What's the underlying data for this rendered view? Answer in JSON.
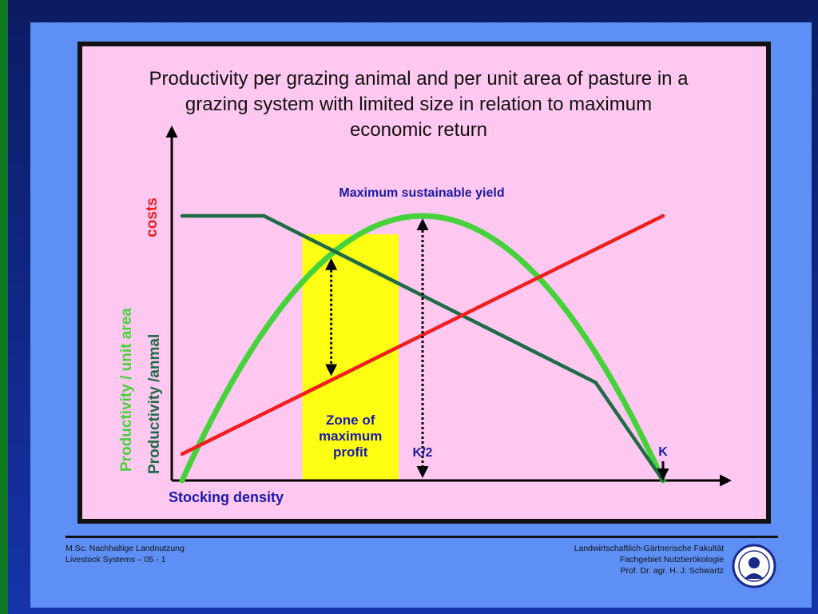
{
  "colors": {
    "background": "#1533a8",
    "left_accent": "#0f7a22",
    "panel": "#5e8ff5",
    "chart_bg": "#ffc8f0",
    "profit_zone": "#ffff14",
    "productivity_area": "#46d23c",
    "productivity_animal": "#1f6b45",
    "costs": "#f01e1e",
    "label_blue": "#1a1aa8"
  },
  "footer": {
    "left": [
      "M.Sc. Nachhaltige Landnutzung",
      "Livestock Systems – 05 - 1"
    ],
    "right": [
      "Landwirtschaftlich-Gärtnerische Fakultät",
      "Fachgebiet Nutztierökologie",
      "Prof. Dr. agr. H. J. Schwartz"
    ]
  },
  "logo_icon": "university-seal-icon",
  "chart_data": {
    "type": "line",
    "title": [
      "Productivity per grazing animal and per unit area of pasture in a",
      "grazing system with limited size in relation to maximum",
      "economic return"
    ],
    "xlabel": "Stocking density",
    "ylabels": [
      {
        "text": "costs",
        "color": "#f01e1e"
      },
      {
        "text": "Productivity /anmal",
        "color": "#1f6b45"
      },
      {
        "text": "Productivity / unit area",
        "color": "#46d23c"
      }
    ],
    "xlim": [
      0,
      100
    ],
    "ylim": [
      0,
      100
    ],
    "series": [
      {
        "name": "Productivity / unit area",
        "color": "#46d23c",
        "shape": "parabola",
        "x": [
          0,
          10,
          20,
          30,
          40,
          50,
          60,
          70,
          80,
          90,
          100
        ],
        "y": [
          0,
          34,
          62,
          82,
          95,
          100,
          95,
          83,
          64,
          37,
          0
        ]
      },
      {
        "name": "Productivity /anmal",
        "color": "#1f6b45",
        "x": [
          0,
          17,
          86,
          100
        ],
        "y": [
          100,
          100,
          37,
          0
        ]
      },
      {
        "name": "costs",
        "color": "#f01e1e",
        "x": [
          0,
          100
        ],
        "y": [
          10,
          100
        ]
      }
    ],
    "zone": {
      "label": [
        "Zone of",
        "maximum",
        "profit"
      ],
      "x_from": 25,
      "x_to": 45
    },
    "annotations": {
      "msy": "Maximum sustainable yield",
      "half_k": "K/2",
      "k": "K",
      "half_k_x": 50,
      "k_x": 100,
      "profit_arrow_x": 31
    }
  }
}
